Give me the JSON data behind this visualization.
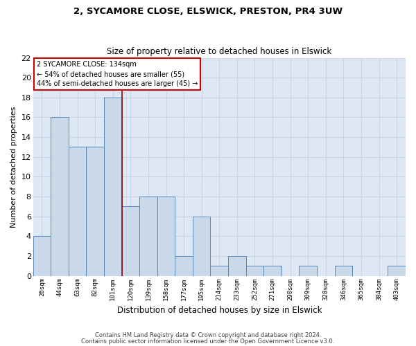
{
  "title1": "2, SYCAMORE CLOSE, ELSWICK, PRESTON, PR4 3UW",
  "title2": "Size of property relative to detached houses in Elswick",
  "xlabel": "Distribution of detached houses by size in Elswick",
  "ylabel": "Number of detached properties",
  "footer1": "Contains HM Land Registry data © Crown copyright and database right 2024.",
  "footer2": "Contains public sector information licensed under the Open Government Licence v3.0.",
  "categories": [
    "26sqm",
    "44sqm",
    "63sqm",
    "82sqm",
    "101sqm",
    "120sqm",
    "139sqm",
    "158sqm",
    "177sqm",
    "195sqm",
    "214sqm",
    "233sqm",
    "252sqm",
    "271sqm",
    "290sqm",
    "309sqm",
    "328sqm",
    "346sqm",
    "365sqm",
    "384sqm",
    "403sqm"
  ],
  "values": [
    4,
    16,
    13,
    13,
    18,
    7,
    8,
    8,
    2,
    6,
    1,
    2,
    1,
    1,
    0,
    1,
    0,
    1,
    0,
    0,
    1
  ],
  "bar_color": "#c9d9ea",
  "bar_edge_color": "#5588bb",
  "property_size": "134sqm",
  "annotation_title": "2 SYCAMORE CLOSE: 134sqm",
  "annotation_line1": "← 54% of detached houses are smaller (55)",
  "annotation_line2": "44% of semi-detached houses are larger (45) →",
  "annotation_box_color": "white",
  "annotation_box_edge_color": "#cc0000",
  "vline_x": 4.5,
  "vline_color": "#990000",
  "ylim": [
    0,
    22
  ],
  "yticks": [
    0,
    2,
    4,
    6,
    8,
    10,
    12,
    14,
    16,
    18,
    20,
    22
  ],
  "grid_color": "#c8d4e4",
  "bg_color": "#dde8f4",
  "title_fontsize": 9.5,
  "subtitle_fontsize": 8.5
}
